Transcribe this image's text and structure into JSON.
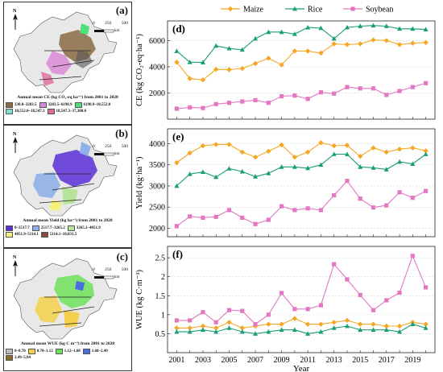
{
  "maps": [
    {
      "label": "(a)",
      "title": "Annual mean CE (kg CO₂-eq ha⁻¹) from 2001 to 2020",
      "scale_ticks": [
        "0",
        "250",
        "500"
      ],
      "scale_unit": "km",
      "legend": [
        {
          "text": "230.8–3283.5",
          "color": "#8b6b45"
        },
        {
          "text": "3283.5–6190.9",
          "color": "#d98ad6"
        },
        {
          "text": "6190.9–10,552.0",
          "color": "#4fe07a"
        },
        {
          "text": "10,552.0–18,547.3",
          "color": "#7fe3d0"
        },
        {
          "text": "18,547.3–37,300.0",
          "color": "#e06a9a"
        }
      ]
    },
    {
      "label": "(b)",
      "title": "Annual mean Yield (kg ha⁻¹) from 2001 to 2020",
      "scale_ticks": [
        "0",
        "250",
        "500"
      ],
      "scale_unit": "km",
      "legend": [
        {
          "text": "0–2517.7",
          "color": "#5b2fd6"
        },
        {
          "text": "2517.7–3265.2",
          "color": "#8fb0e8"
        },
        {
          "text": "3265.2–4051.9",
          "color": "#b7e39a"
        },
        {
          "text": "4051.9–5114.1",
          "color": "#f5f07a"
        },
        {
          "text": "5114.1–10,831.5",
          "color": "#8b4b3a"
        }
      ]
    },
    {
      "label": "(c)",
      "title": "Annual mean WUE (kg C m⁻³) from 2001 to 2020",
      "scale_ticks": [
        "0",
        "250",
        "500"
      ],
      "scale_unit": "km",
      "legend": [
        {
          "text": "0–0.70",
          "color": "#bdbdbd"
        },
        {
          "text": "0.70–1.12",
          "color": "#f3d04a"
        },
        {
          "text": "1.12–1.68",
          "color": "#6fe05a"
        },
        {
          "text": "1.68–2.49",
          "color": "#4a6ee0"
        },
        {
          "text": "2.49–5.94",
          "color": "#8b6b2a"
        }
      ]
    }
  ],
  "chart_data": {
    "type": "line",
    "x": [
      2001,
      2002,
      2003,
      2004,
      2005,
      2006,
      2007,
      2008,
      2009,
      2010,
      2011,
      2012,
      2013,
      2014,
      2015,
      2016,
      2017,
      2018,
      2019,
      2020
    ],
    "xticks": [
      "2001",
      "2003",
      "2005",
      "2007",
      "2009",
      "2011",
      "2013",
      "2015",
      "2017",
      "2019"
    ],
    "xlabel": "Year",
    "colors": {
      "Maize": "#f5a623",
      "Rice": "#1a9e77",
      "Soybean": "#e377c2"
    },
    "legend_position": "top",
    "series_names": [
      "Maize",
      "Rice",
      "Soybean"
    ],
    "panels": [
      {
        "label": "(d)",
        "ylabel": "CE (kg CO₂-eq·ha⁻¹)",
        "ylim": [
          0,
          7500
        ],
        "yticks": [
          2000,
          4000,
          6000
        ],
        "series": [
          {
            "name": "Maize",
            "values": [
              4350,
              3100,
              3000,
              3800,
              3780,
              3870,
              4250,
              4650,
              4150,
              5200,
              5200,
              5050,
              5750,
              5700,
              5750,
              6050,
              6000,
              5700,
              5800,
              5850
            ]
          },
          {
            "name": "Rice",
            "values": [
              5200,
              4350,
              4330,
              5600,
              5400,
              5300,
              6150,
              6650,
              6650,
              6500,
              7000,
              6950,
              6150,
              7000,
              7100,
              7150,
              7100,
              6900,
              6900,
              6850
            ]
          },
          {
            "name": "Soybean",
            "values": [
              800,
              900,
              850,
              1150,
              1250,
              1350,
              1450,
              1250,
              1750,
              1800,
              1550,
              2050,
              1950,
              2450,
              2350,
              2350,
              1850,
              2150,
              2450,
              2750
            ]
          }
        ]
      },
      {
        "label": "(e)",
        "ylabel": "Yield (kg·ha⁻¹)",
        "ylim": [
          1800,
          4350
        ],
        "yticks": [
          2000,
          2500,
          3000,
          3500,
          4000
        ],
        "series": [
          {
            "name": "Maize",
            "values": [
              3550,
              3780,
              3950,
              3980,
              3980,
              3800,
              3680,
              3820,
              3970,
              3680,
              3800,
              4020,
              3950,
              3960,
              3700,
              3900,
              3800,
              3870,
              3900,
              3830
            ]
          },
          {
            "name": "Rice",
            "values": [
              3000,
              3280,
              3330,
              3210,
              3410,
              3340,
              3220,
              3300,
              3450,
              3450,
              3420,
              3500,
              3750,
              3750,
              3450,
              3430,
              3390,
              3570,
              3520,
              3750
            ]
          },
          {
            "name": "Soybean",
            "values": [
              2050,
              2280,
              2250,
              2270,
              2430,
              2250,
              2100,
              2200,
              2520,
              2430,
              2470,
              2430,
              2780,
              3120,
              2700,
              2490,
              2540,
              2850,
              2720,
              2880
            ]
          }
        ]
      },
      {
        "label": "(f)",
        "ylabel": "WUE (kg C·m⁻³)",
        "ylim": [
          0,
          2.8
        ],
        "yticks": [
          0.5,
          1.0,
          1.5,
          2.0,
          2.5
        ],
        "series": [
          {
            "name": "Maize",
            "values": [
              0.65,
              0.65,
              0.7,
              0.65,
              0.8,
              0.65,
              0.7,
              0.75,
              0.75,
              0.9,
              0.75,
              0.75,
              0.8,
              0.85,
              0.75,
              0.75,
              0.7,
              0.7,
              0.8,
              0.75
            ]
          },
          {
            "name": "Rice",
            "values": [
              0.55,
              0.55,
              0.6,
              0.55,
              0.65,
              0.55,
              0.5,
              0.55,
              0.6,
              0.6,
              0.5,
              0.55,
              0.65,
              0.7,
              0.6,
              0.6,
              0.6,
              0.55,
              0.75,
              0.65
            ]
          },
          {
            "name": "Soybean",
            "values": [
              0.85,
              0.85,
              1.07,
              0.8,
              1.12,
              1.1,
              0.75,
              1.0,
              1.57,
              1.15,
              1.15,
              1.25,
              2.33,
              1.93,
              1.52,
              1.12,
              1.38,
              1.58,
              2.55,
              1.72
            ]
          }
        ]
      }
    ]
  }
}
